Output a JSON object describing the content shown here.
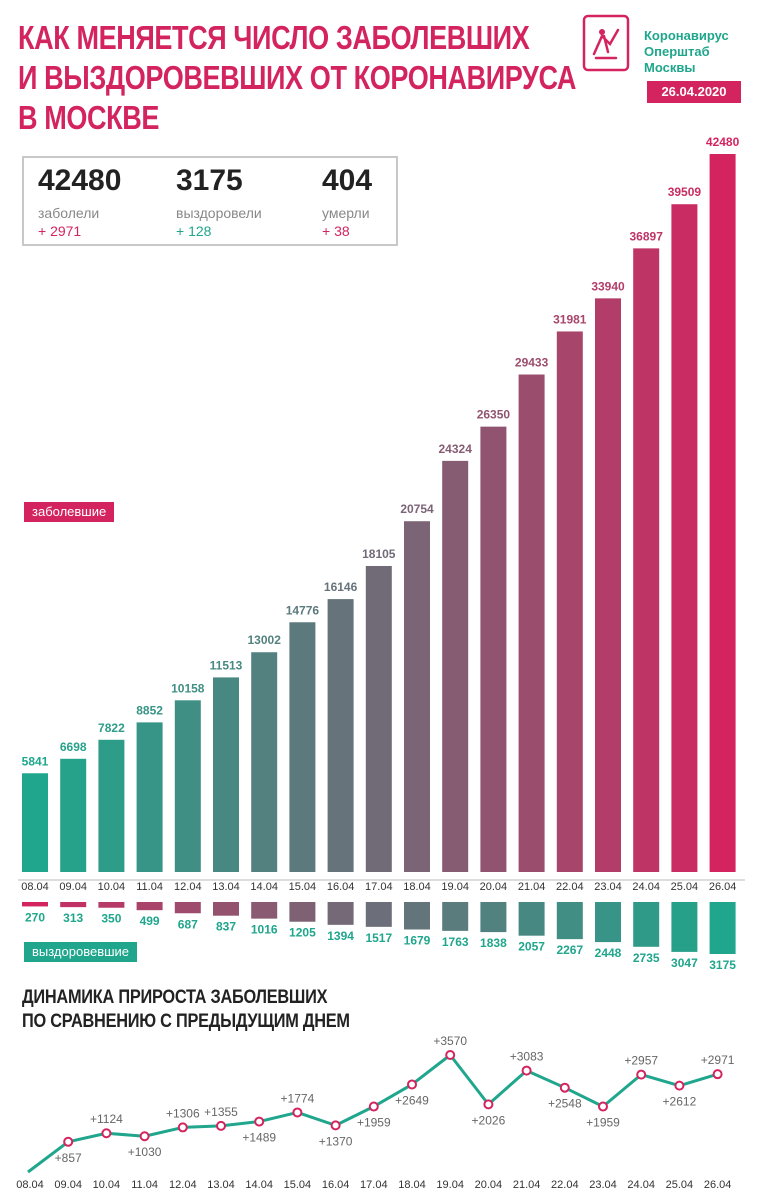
{
  "title_lines": [
    "Как меняется число заболевших",
    "и выздоровевших от коронавируса",
    "в Москве"
  ],
  "brand": {
    "line1": "Коронавирус",
    "line2": "Оперштаб",
    "line3": "Москвы"
  },
  "date": "26.04.2020",
  "stats": {
    "sick": {
      "value": "42480",
      "label": "заболели",
      "delta": "+ 2971"
    },
    "recovered": {
      "value": "3175",
      "label": "выздоровели",
      "delta": "+ 128"
    },
    "died": {
      "value": "404",
      "label": "умерли",
      "delta": "+ 38"
    }
  },
  "tags": {
    "sick": "заболевшие",
    "recovered": "выздоровевшие"
  },
  "subtitle_lines": [
    "Динамика прироста заболевших",
    "по сравнению с предыдущим днем"
  ],
  "colors": {
    "accent": "#d4245f",
    "teal": "#1fa68c",
    "brand_green": "#1fa68c"
  },
  "chart_data": [
    {
      "type": "bar",
      "categories": [
        "08.04",
        "09.04",
        "10.04",
        "11.04",
        "12.04",
        "13.04",
        "14.04",
        "15.04",
        "16.04",
        "17.04",
        "18.04",
        "19.04",
        "20.04",
        "21.04",
        "22.04",
        "23.04",
        "24.04",
        "25.04",
        "26.04"
      ],
      "series": [
        {
          "name": "заболевшие",
          "values": [
            5841,
            6698,
            7822,
            8852,
            10158,
            11513,
            13002,
            14776,
            16146,
            18105,
            20754,
            24324,
            26350,
            29433,
            31981,
            33940,
            36897,
            39509,
            42480
          ]
        },
        {
          "name": "выздоровевшие",
          "values": [
            270,
            313,
            350,
            499,
            687,
            837,
            1016,
            1205,
            1394,
            1517,
            1679,
            1763,
            1838,
            2057,
            2267,
            2448,
            2735,
            3047,
            3175
          ]
        }
      ],
      "color_start": "#1fa68c",
      "color_end": "#d4245f"
    },
    {
      "type": "line",
      "x": [
        "08.04",
        "09.04",
        "10.04",
        "11.04",
        "12.04",
        "13.04",
        "14.04",
        "15.04",
        "16.04",
        "17.04",
        "18.04",
        "19.04",
        "20.04",
        "21.04",
        "22.04",
        "23.04",
        "24.04",
        "25.04",
        "26.04"
      ],
      "values": [
        null,
        857,
        1124,
        1030,
        1306,
        1355,
        1489,
        1774,
        1370,
        1959,
        2649,
        3570,
        2026,
        3083,
        2548,
        1959,
        2957,
        2612,
        2971
      ],
      "labels": [
        "",
        "+857",
        "+1124",
        "+1030",
        "+1306",
        "+1355",
        "+1489",
        "+1774",
        "+1370",
        "+1959",
        "+2649",
        "+3570",
        "+2026",
        "+3083",
        "+2548",
        "+1959",
        "+2957",
        "+2612",
        "+2971"
      ]
    }
  ]
}
